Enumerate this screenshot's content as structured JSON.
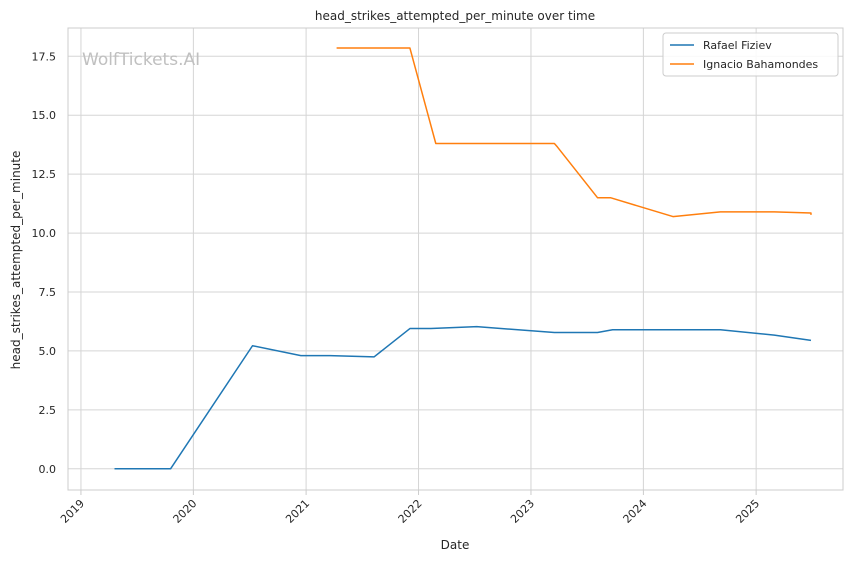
{
  "chart_data": {
    "type": "line",
    "title": "head_strikes_attempted_per_minute over time",
    "xlabel": "Date",
    "ylabel": "head_strikes_attempted_per_minute",
    "watermark": "WolfTickets.AI",
    "x_ticks": [
      "2019",
      "2020",
      "2021",
      "2022",
      "2023",
      "2024",
      "2025"
    ],
    "y_ticks": [
      "0.0",
      "2.5",
      "5.0",
      "7.5",
      "10.0",
      "12.5",
      "15.0",
      "17.5"
    ],
    "xlim": [
      "2018-11-20",
      "2025-10-10"
    ],
    "ylim": [
      -0.9,
      18.7
    ],
    "grid": true,
    "legend_position": "top-right",
    "series": [
      {
        "name": "Rafael Fiziev",
        "color": "#1f77b4",
        "points": [
          [
            "2019-04-20",
            0.0
          ],
          [
            "2019-10-19",
            0.0
          ],
          [
            "2020-07-11",
            5.22
          ],
          [
            "2020-12-15",
            4.8
          ],
          [
            "2021-03-20",
            4.8
          ],
          [
            "2021-08-10",
            4.75
          ],
          [
            "2021-12-04",
            5.95
          ],
          [
            "2022-02-10",
            5.95
          ],
          [
            "2022-07-09",
            6.03
          ],
          [
            "2023-03-18",
            5.78
          ],
          [
            "2023-08-05",
            5.78
          ],
          [
            "2023-09-23",
            5.9
          ],
          [
            "2024-09-07",
            5.9
          ],
          [
            "2025-03-01",
            5.67
          ],
          [
            "2025-06-28",
            5.45
          ]
        ]
      },
      {
        "name": "Ignacio Bahamondes",
        "color": "#ff7f0e",
        "points": [
          [
            "2021-04-10",
            17.85
          ],
          [
            "2021-12-04",
            17.85
          ],
          [
            "2022-02-26",
            13.8
          ],
          [
            "2023-03-18",
            13.8
          ],
          [
            "2023-03-28",
            13.65
          ],
          [
            "2023-08-05",
            11.5
          ],
          [
            "2023-09-16",
            11.5
          ],
          [
            "2024-04-06",
            10.7
          ],
          [
            "2024-09-07",
            10.9
          ],
          [
            "2025-03-01",
            10.9
          ],
          [
            "2025-06-28",
            10.85
          ],
          [
            "2025-06-28",
            10.77
          ]
        ]
      }
    ]
  }
}
